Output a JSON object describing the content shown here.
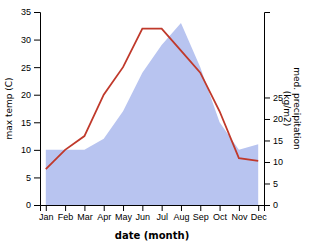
{
  "chart_data": {
    "type": "line",
    "xlabel": "date (month)",
    "ylabel": "max temp (C)",
    "y2label": "med. precipitation\n(kg/m2)",
    "categories": [
      "Jan",
      "Feb",
      "Mar",
      "Apr",
      "May",
      "Jun",
      "Jul",
      "Aug",
      "Sep",
      "Oct",
      "Nov",
      "Dec"
    ],
    "series": [
      {
        "type": "area",
        "color": "#b8c4f0",
        "values": [
          10,
          10,
          10,
          12,
          17,
          24,
          29,
          33,
          25,
          15,
          10,
          11
        ]
      },
      {
        "type": "line",
        "color": "#c0392b",
        "values": [
          6.5,
          10.0,
          12.5,
          20.0,
          25.0,
          32.0,
          32.0,
          28.0,
          24.0,
          17.0,
          8.5,
          8.0
        ]
      }
    ],
    "ylim": [
      0,
      35
    ],
    "yticks": [
      0,
      5,
      10,
      15,
      20,
      25,
      30,
      35
    ],
    "y2lim": [
      0,
      44.87179487179487
    ],
    "y2ticks": [
      0,
      5,
      10,
      15,
      20,
      25
    ],
    "grid": false
  }
}
